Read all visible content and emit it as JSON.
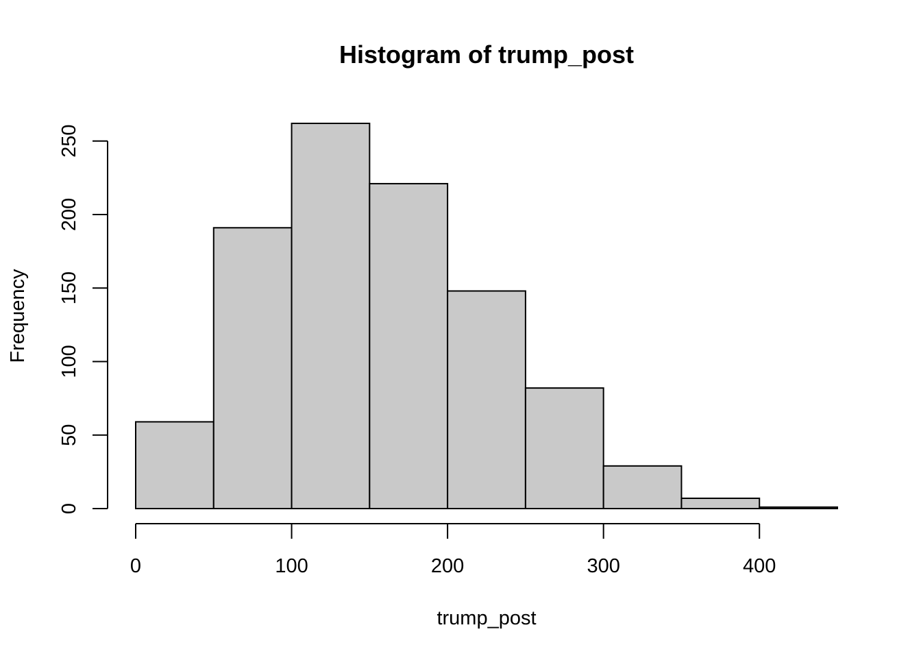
{
  "chart_data": {
    "type": "bar",
    "title": "Histogram of trump_post",
    "xlabel": "trump_post",
    "ylabel": "Frequency",
    "bins": [
      {
        "from": 0,
        "to": 50,
        "value": 59
      },
      {
        "from": 50,
        "to": 100,
        "value": 191
      },
      {
        "from": 100,
        "to": 150,
        "value": 262
      },
      {
        "from": 150,
        "to": 200,
        "value": 221
      },
      {
        "from": 200,
        "to": 250,
        "value": 148
      },
      {
        "from": 250,
        "to": 300,
        "value": 82
      },
      {
        "from": 300,
        "to": 350,
        "value": 29
      },
      {
        "from": 350,
        "to": 400,
        "value": 7
      },
      {
        "from": 400,
        "to": 450,
        "value": 1
      }
    ],
    "xlim": [
      0,
      450
    ],
    "ylim": [
      0,
      262
    ],
    "xticks": [
      "0",
      "100",
      "200",
      "300",
      "400"
    ],
    "yticks": [
      "0",
      "50",
      "100",
      "150",
      "200",
      "250"
    ],
    "grid": false,
    "bar_color": "#c9c9c9"
  }
}
